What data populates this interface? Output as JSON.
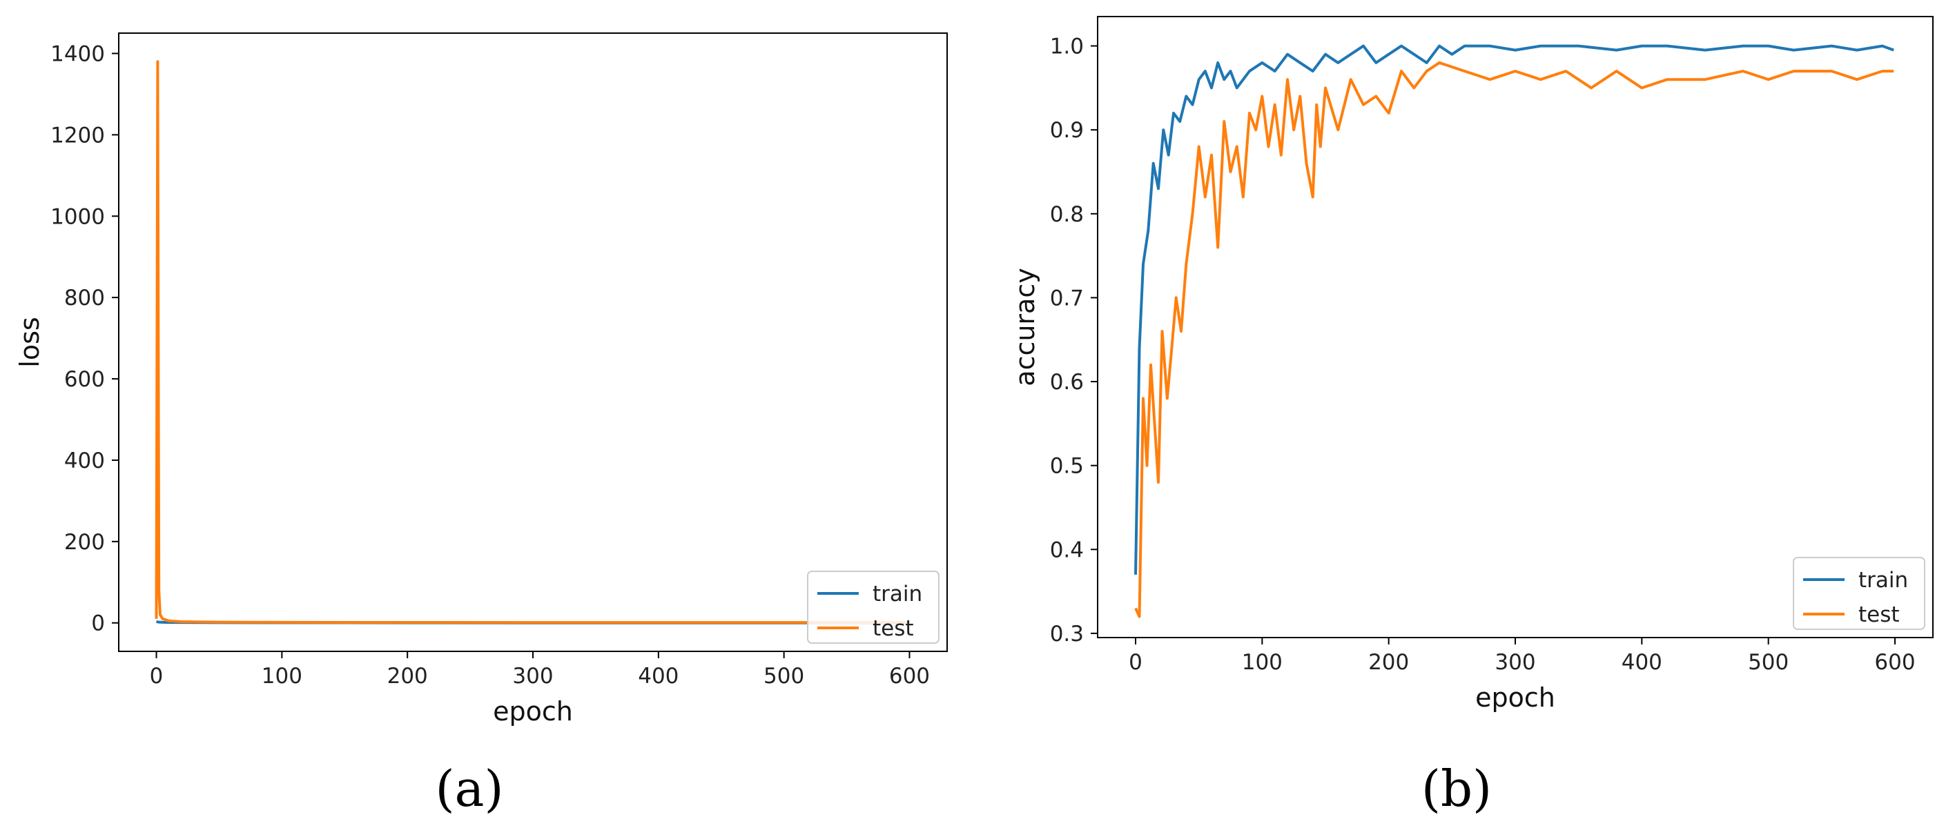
{
  "colors": {
    "train": "#1f77b4",
    "test": "#ff7f0e",
    "axis": "#000000"
  },
  "chart_data": [
    {
      "type": "line",
      "caption": "(a)",
      "xlabel": "epoch",
      "ylabel": "loss",
      "xlim": [
        -30,
        630
      ],
      "ylim": [
        -70,
        1450
      ],
      "xticks": [
        0,
        100,
        200,
        300,
        400,
        500,
        600
      ],
      "yticks": [
        0,
        200,
        400,
        600,
        800,
        1000,
        1200,
        1400
      ],
      "legend": "lower-right",
      "series": [
        {
          "name": "train",
          "color": "#1f77b4",
          "x": [
            0,
            1,
            2,
            5,
            10,
            50,
            100,
            200,
            300,
            400,
            500,
            599
          ],
          "y": [
            3,
            2.5,
            2,
            1.5,
            1,
            0.6,
            0.4,
            0.2,
            0.1,
            0.05,
            0.03,
            0.02
          ]
        },
        {
          "name": "test",
          "color": "#ff7f0e",
          "x": [
            0,
            1,
            2,
            3,
            5,
            10,
            20,
            50,
            100,
            200,
            300,
            400,
            500,
            599
          ],
          "y": [
            10,
            1380,
            80,
            20,
            10,
            5,
            3,
            2,
            1.5,
            1.2,
            1.0,
            1.0,
            1.0,
            1.0
          ]
        }
      ]
    },
    {
      "type": "line",
      "caption": "(b)",
      "xlabel": "epoch",
      "ylabel": "accuracy",
      "xlim": [
        -30,
        630
      ],
      "ylim": [
        0.295,
        1.035
      ],
      "xticks": [
        0,
        100,
        200,
        300,
        400,
        500,
        600
      ],
      "yticks": [
        0.3,
        0.4,
        0.5,
        0.6,
        0.7,
        0.8,
        0.9,
        1.0
      ],
      "legend": "lower-right",
      "series": [
        {
          "name": "train",
          "color": "#1f77b4",
          "x": [
            0,
            3,
            6,
            10,
            14,
            18,
            22,
            26,
            30,
            35,
            40,
            45,
            50,
            55,
            60,
            65,
            70,
            75,
            80,
            90,
            100,
            110,
            120,
            130,
            140,
            150,
            160,
            170,
            180,
            190,
            200,
            210,
            220,
            230,
            240,
            250,
            260,
            280,
            300,
            320,
            350,
            380,
            400,
            420,
            450,
            480,
            500,
            520,
            550,
            570,
            590,
            599
          ],
          "y": [
            0.37,
            0.64,
            0.74,
            0.78,
            0.86,
            0.83,
            0.9,
            0.87,
            0.92,
            0.91,
            0.94,
            0.93,
            0.96,
            0.97,
            0.95,
            0.98,
            0.96,
            0.97,
            0.95,
            0.97,
            0.98,
            0.97,
            0.99,
            0.98,
            0.97,
            0.99,
            0.98,
            0.99,
            1.0,
            0.98,
            0.99,
            1.0,
            0.99,
            0.98,
            1.0,
            0.99,
            1.0,
            1.0,
            0.995,
            1.0,
            1.0,
            0.995,
            1.0,
            1.0,
            0.995,
            1.0,
            1.0,
            0.995,
            1.0,
            0.995,
            1.0,
            0.995
          ]
        },
        {
          "name": "test",
          "color": "#ff7f0e",
          "x": [
            0,
            3,
            6,
            9,
            12,
            15,
            18,
            21,
            25,
            28,
            32,
            36,
            40,
            45,
            50,
            55,
            60,
            65,
            70,
            75,
            80,
            85,
            90,
            95,
            100,
            105,
            110,
            115,
            120,
            125,
            130,
            135,
            140,
            143,
            146,
            150,
            160,
            170,
            180,
            190,
            200,
            210,
            220,
            230,
            240,
            260,
            280,
            300,
            320,
            340,
            360,
            380,
            400,
            420,
            450,
            480,
            500,
            520,
            550,
            570,
            590,
            599
          ],
          "y": [
            0.33,
            0.32,
            0.58,
            0.5,
            0.62,
            0.55,
            0.48,
            0.66,
            0.58,
            0.63,
            0.7,
            0.66,
            0.74,
            0.8,
            0.88,
            0.82,
            0.87,
            0.76,
            0.91,
            0.85,
            0.88,
            0.82,
            0.92,
            0.9,
            0.94,
            0.88,
            0.93,
            0.87,
            0.96,
            0.9,
            0.94,
            0.86,
            0.82,
            0.93,
            0.88,
            0.95,
            0.9,
            0.96,
            0.93,
            0.94,
            0.92,
            0.97,
            0.95,
            0.97,
            0.98,
            0.97,
            0.96,
            0.97,
            0.96,
            0.97,
            0.95,
            0.97,
            0.95,
            0.96,
            0.96,
            0.97,
            0.96,
            0.97,
            0.97,
            0.96,
            0.97,
            0.97
          ]
        }
      ]
    }
  ]
}
